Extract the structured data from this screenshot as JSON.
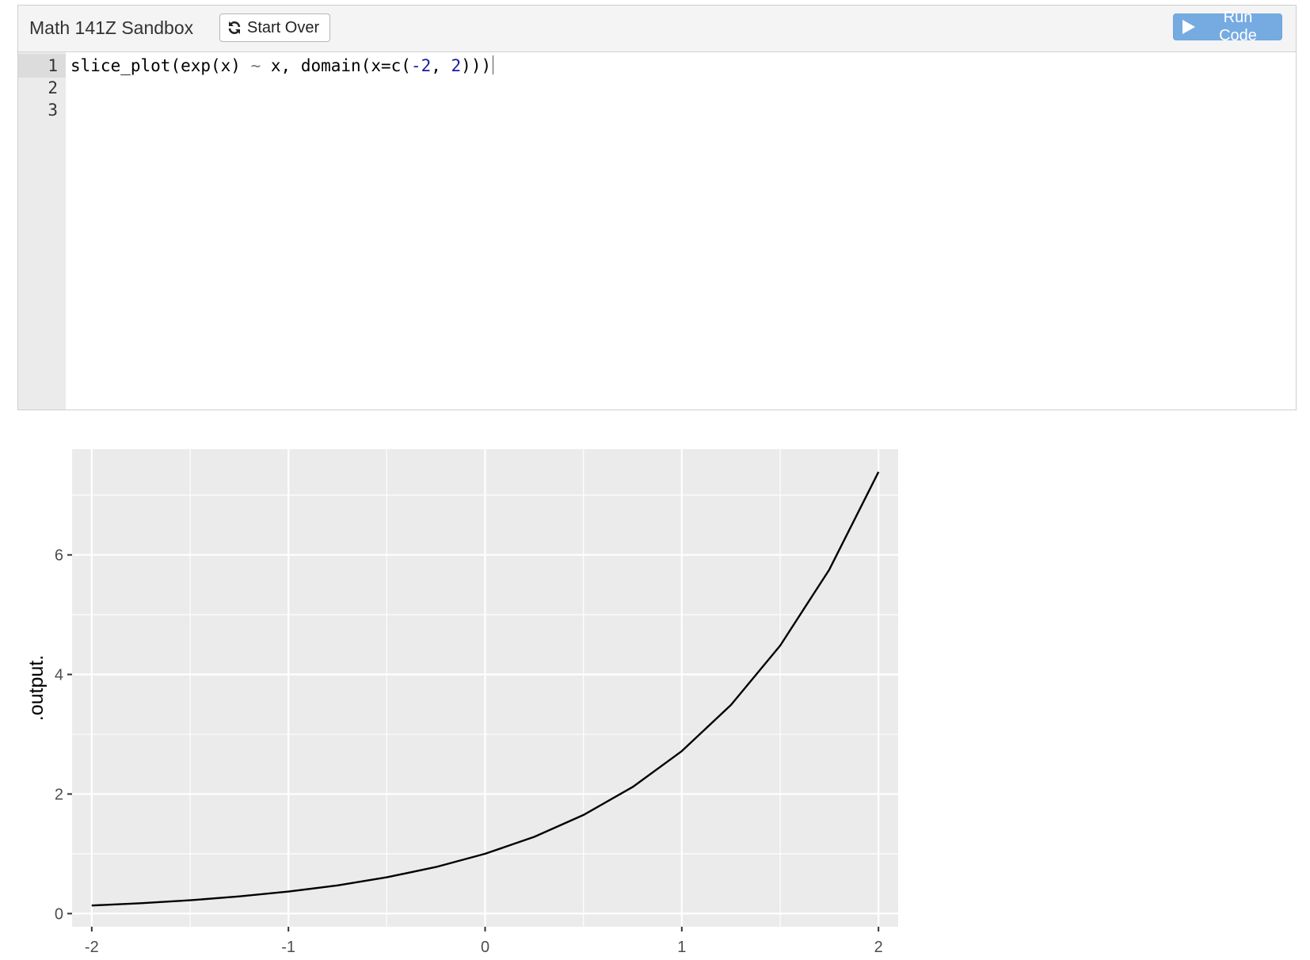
{
  "header": {
    "title": "Math 141Z Sandbox",
    "start_over_label": "Start Over",
    "run_code_label": "Run Code"
  },
  "editor": {
    "line_numbers": [
      "1",
      "2",
      "3"
    ],
    "code_line_1": {
      "fn": "slice_plot",
      "p_open": "(",
      "arg1": "exp(x) ",
      "tilde": "~",
      "arg2": " x, domain(x=c(",
      "num1": "-2",
      "comma": ", ",
      "num2": "2",
      "p_close": ")))"
    }
  },
  "colors": {
    "panel_background": "#ebebeb",
    "grid": "#ffffff",
    "curve": "#000000",
    "run_button": "#76abe1"
  },
  "chart_data": {
    "type": "line",
    "title": "",
    "xlabel": "",
    "ylabel": ".output.",
    "xlim": [
      -2.1,
      2.1
    ],
    "ylim": [
      -0.22,
      7.77
    ],
    "x_ticks": [
      -2,
      -1,
      0,
      1,
      2
    ],
    "x_tick_labels": [
      "-2",
      "-1",
      "0",
      "1",
      "2"
    ],
    "y_ticks": [
      0,
      2,
      4,
      6
    ],
    "y_tick_labels": [
      "0",
      "2",
      "4",
      "6"
    ],
    "grid": true,
    "legend": "none",
    "series": [
      {
        "x": [
          -2,
          -1.75,
          -1.5,
          -1.25,
          -1,
          -0.75,
          -0.5,
          -0.25,
          0,
          0.25,
          0.5,
          0.75,
          1,
          1.25,
          1.5,
          1.75,
          2
        ],
        "y": [
          0.135,
          0.174,
          0.223,
          0.287,
          0.368,
          0.472,
          0.607,
          0.779,
          1.0,
          1.284,
          1.649,
          2.117,
          2.718,
          3.49,
          4.482,
          5.755,
          7.389
        ]
      }
    ]
  }
}
